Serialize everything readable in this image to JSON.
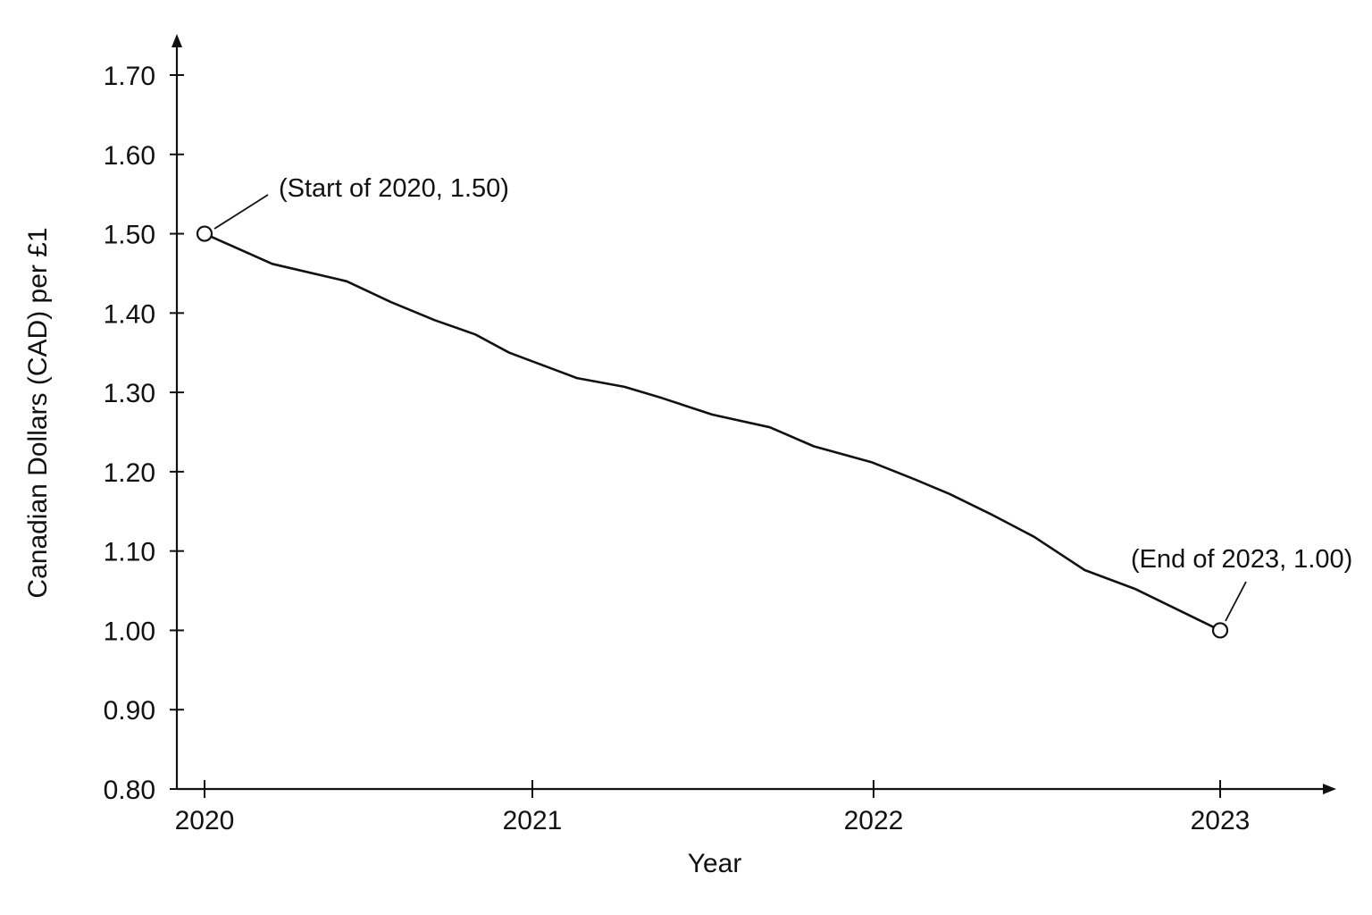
{
  "chart_data": {
    "type": "line",
    "xlabel": "Year",
    "ylabel": "Canadian Dollars (CAD) per £1",
    "x_ticks": [
      "2020",
      "2021",
      "2022",
      "2023"
    ],
    "y_ticks": [
      "0.80",
      "0.90",
      "1.00",
      "1.10",
      "1.20",
      "1.30",
      "1.40",
      "1.50",
      "1.60",
      "1.70"
    ],
    "xlim": [
      2020,
      2023
    ],
    "ylim": [
      0.8,
      1.7
    ],
    "grid": false,
    "series": [
      {
        "x": [
          2020.0,
          2020.2,
          2020.42,
          2020.55,
          2020.68,
          2020.8,
          2020.9,
          2021.1,
          2021.24,
          2021.35,
          2021.5,
          2021.67,
          2021.8,
          2021.97,
          2022.1,
          2022.2,
          2022.32,
          2022.45,
          2022.6,
          2022.75,
          2023.0
        ],
        "y": [
          1.5,
          1.462,
          1.44,
          1.414,
          1.391,
          1.373,
          1.35,
          1.318,
          1.307,
          1.293,
          1.272,
          1.256,
          1.232,
          1.212,
          1.19,
          1.172,
          1.147,
          1.118,
          1.076,
          1.052,
          1.0
        ]
      }
    ],
    "annotations": [
      {
        "text": "(Start of 2020, 1.50)",
        "x": 2020.0,
        "y": 1.5
      },
      {
        "text": "(End of 2023, 1.00)",
        "x": 2023.0,
        "y": 1.0
      }
    ]
  },
  "colors": {
    "line": "#111111",
    "background": "#ffffff"
  }
}
